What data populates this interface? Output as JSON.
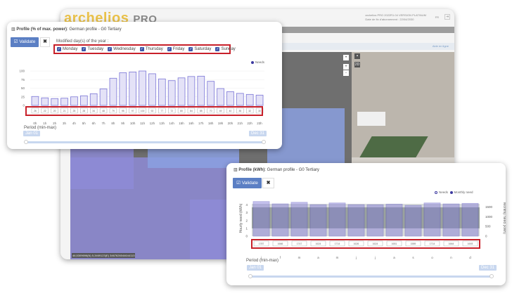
{
  "app": {
    "logo_main": "archelios",
    "logo_sub": "PRO",
    "version": "archelios PRO 2022R1.04 VERSION PLATINUM",
    "subscription": "Date de fin d'abonnement : 22/04/2030",
    "language": "FR",
    "help": "Aide en ligne",
    "coordinates": "46,5309696(N) 5,3469123(E) 3467626044644113",
    "map_controls": [
      "+",
      "-",
      "2D"
    ]
  },
  "profile_pct": {
    "title_bold": "Profile (% of max. power)",
    "title_rest": ": German profile - G0 Tertiary",
    "validate_label": "Validate",
    "close_label": "✖",
    "days_label": "Modified day(s) of the year :",
    "days": [
      {
        "label": "Monday",
        "checked": true
      },
      {
        "label": "Tuesday",
        "checked": true
      },
      {
        "label": "Wednesday",
        "checked": true
      },
      {
        "label": "Thursday",
        "checked": true
      },
      {
        "label": "Friday",
        "checked": true
      },
      {
        "label": "Saturday",
        "checked": true
      },
      {
        "label": "Sunday",
        "checked": true
      }
    ],
    "legend": "Needs",
    "period_label": "Period (min-max)",
    "period_min": "Jan 01",
    "period_max": "Dec 31"
  },
  "profile_kwh": {
    "title_bold": "Profile (kWh)",
    "title_rest": ": German profile - G0 Tertiary",
    "validate_label": "Validate",
    "close_label": "✖",
    "legend_needs": "Needs",
    "legend_monthly": "Monthly need",
    "period_label": "Period (min-max)",
    "period_min": "Jan 01",
    "period_max": "Dec 31"
  },
  "chart_data": [
    {
      "type": "bar",
      "categories": [
        "0h",
        "1h",
        "2h",
        "3h",
        "4h",
        "5h",
        "6h",
        "7h",
        "8h",
        "9h",
        "10h",
        "11h",
        "12h",
        "13h",
        "14h",
        "15h",
        "16h",
        "17h",
        "18h",
        "19h",
        "20h",
        "21h",
        "22h",
        "23h"
      ],
      "values": [
        26,
        22,
        20,
        21,
        25,
        28,
        34,
        48,
        79,
        95,
        97,
        100,
        92,
        77,
        72,
        80,
        84,
        85,
        70,
        49,
        40,
        35,
        32,
        30
      ],
      "yticks": [
        0,
        25,
        50,
        75,
        100
      ],
      "ylim": [
        0,
        100
      ],
      "legend": "top-right",
      "colors": {
        "bar": "#e4e2f7",
        "border": "#7b76d6"
      }
    },
    {
      "type": "bar",
      "categories": [
        "j",
        "f",
        "m",
        "a",
        "m",
        "j",
        "j",
        "a",
        "s",
        "o",
        "n",
        "d"
      ],
      "values": [
        1787,
        1666,
        1747,
        1624,
        1714,
        1626,
        1624,
        1651,
        1589,
        1714,
        1664,
        1693
      ],
      "ylabel": "Hourly need (kWh)",
      "y2label": "Monthly need (kWh)",
      "yticks": [
        0,
        1,
        2,
        3,
        4
      ],
      "y2ticks": [
        0,
        500,
        1000,
        1500
      ],
      "ylim": [
        0,
        4.6
      ],
      "y2lim": [
        0,
        1850
      ],
      "legend": "top-right",
      "colors": {
        "monthly": "#4a44b8",
        "needs": "#8a938e"
      }
    }
  ],
  "colors": {
    "accent": "#5b7fc4",
    "highlight": "#c8202a"
  }
}
